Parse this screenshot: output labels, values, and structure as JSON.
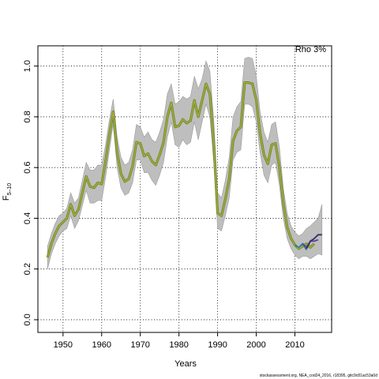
{
  "chart_data": {
    "type": "line",
    "xlabel": "Years",
    "ylabel_main": "F",
    "ylabel_sub": "5–10",
    "legend_label": "Rho 3%",
    "legend_position": "top-right",
    "credit": "stockassessment.org, NEA_cod24_2016, r18395, gitc9c81ac53a0d",
    "xlim": [
      1943.5,
      2019.5
    ],
    "ylim": [
      -0.05,
      1.08
    ],
    "xticks": [
      1950,
      1960,
      1970,
      1980,
      1990,
      2000,
      2010
    ],
    "yticks": [
      0.0,
      0.2,
      0.4,
      0.6,
      0.8,
      1.0
    ],
    "ytick_labels": [
      "0.0",
      "0.2",
      "0.4",
      "0.6",
      "0.8",
      "1.0"
    ],
    "grid": true,
    "grid_style": "dotted",
    "colors": {
      "band": "#bebebe",
      "band_edge": "#9a9a9a",
      "line_outer": "#6b8e23",
      "line_inner": "#b8a94a",
      "peel1": "#1f8a8a",
      "peel2": "#2f7fb5",
      "peel3": "#5a3d9a",
      "peel4": "#3a2a6a"
    },
    "series": [
      {
        "role": "estimate",
        "x": [
          1946,
          1947,
          1948,
          1949,
          1950,
          1951,
          1952,
          1953,
          1954,
          1955,
          1956,
          1957,
          1958,
          1959,
          1960,
          1961,
          1962,
          1963,
          1964,
          1965,
          1966,
          1967,
          1968,
          1969,
          1970,
          1971,
          1972,
          1973,
          1974,
          1975,
          1976,
          1977,
          1978,
          1979,
          1980,
          1981,
          1982,
          1983,
          1984,
          1985,
          1986,
          1987,
          1988,
          1989,
          1990,
          1991,
          1992,
          1993,
          1994,
          1995,
          1996,
          1997,
          1998,
          1999,
          2000,
          2001,
          2002,
          2003,
          2004,
          2005,
          2006,
          2007,
          2008,
          2009,
          2010,
          2011,
          2012,
          2013,
          2014,
          2015
        ],
        "y": [
          0.245,
          0.3,
          0.34,
          0.37,
          0.385,
          0.4,
          0.455,
          0.41,
          0.435,
          0.5,
          0.565,
          0.525,
          0.52,
          0.54,
          0.535,
          0.625,
          0.73,
          0.82,
          0.66,
          0.575,
          0.545,
          0.555,
          0.605,
          0.7,
          0.695,
          0.645,
          0.655,
          0.625,
          0.61,
          0.65,
          0.7,
          0.8,
          0.855,
          0.76,
          0.765,
          0.79,
          0.775,
          0.785,
          0.865,
          0.8,
          0.865,
          0.93,
          0.89,
          0.7,
          0.42,
          0.41,
          0.475,
          0.555,
          0.705,
          0.745,
          0.76,
          0.935,
          0.935,
          0.93,
          0.865,
          0.735,
          0.65,
          0.615,
          0.69,
          0.695,
          0.6,
          0.46,
          0.365,
          0.32,
          0.295,
          0.28,
          0.29,
          0.3,
          0.285,
          0.3
        ]
      },
      {
        "role": "band_upper",
        "x": [
          1946,
          1947,
          1948,
          1949,
          1950,
          1951,
          1952,
          1953,
          1954,
          1955,
          1956,
          1957,
          1958,
          1959,
          1960,
          1961,
          1962,
          1963,
          1964,
          1965,
          1966,
          1967,
          1968,
          1969,
          1970,
          1971,
          1972,
          1973,
          1974,
          1975,
          1976,
          1977,
          1978,
          1979,
          1980,
          1981,
          1982,
          1983,
          1984,
          1985,
          1986,
          1987,
          1988,
          1989,
          1990,
          1991,
          1992,
          1993,
          1994,
          1995,
          1996,
          1997,
          1998,
          1999,
          2000,
          2001,
          2002,
          2003,
          2004,
          2005,
          2006,
          2007,
          2008,
          2009,
          2010,
          2011,
          2012,
          2013,
          2014,
          2015,
          2016,
          2017
        ],
        "y": [
          0.29,
          0.34,
          0.38,
          0.41,
          0.42,
          0.44,
          0.5,
          0.46,
          0.48,
          0.55,
          0.62,
          0.59,
          0.59,
          0.61,
          0.61,
          0.69,
          0.79,
          0.87,
          0.72,
          0.64,
          0.61,
          0.62,
          0.67,
          0.77,
          0.76,
          0.72,
          0.74,
          0.71,
          0.7,
          0.74,
          0.79,
          0.89,
          0.93,
          0.85,
          0.86,
          0.88,
          0.87,
          0.88,
          0.96,
          0.91,
          0.95,
          1.02,
          0.98,
          0.79,
          0.5,
          0.48,
          0.55,
          0.64,
          0.8,
          0.84,
          0.86,
          1.03,
          1.035,
          1.03,
          0.96,
          0.82,
          0.74,
          0.7,
          0.77,
          0.78,
          0.68,
          0.52,
          0.42,
          0.37,
          0.345,
          0.33,
          0.34,
          0.36,
          0.37,
          0.385,
          0.4,
          0.455
        ]
      },
      {
        "role": "band_lower",
        "x": [
          1946,
          1947,
          1948,
          1949,
          1950,
          1951,
          1952,
          1953,
          1954,
          1955,
          1956,
          1957,
          1958,
          1959,
          1960,
          1961,
          1962,
          1963,
          1964,
          1965,
          1966,
          1967,
          1968,
          1969,
          1970,
          1971,
          1972,
          1973,
          1974,
          1975,
          1976,
          1977,
          1978,
          1979,
          1980,
          1981,
          1982,
          1983,
          1984,
          1985,
          1986,
          1987,
          1988,
          1989,
          1990,
          1991,
          1992,
          1993,
          1994,
          1995,
          1996,
          1997,
          1998,
          1999,
          2000,
          2001,
          2002,
          2003,
          2004,
          2005,
          2006,
          2007,
          2008,
          2009,
          2010,
          2011,
          2012,
          2013,
          2014,
          2015,
          2016,
          2017
        ],
        "y": [
          0.2,
          0.26,
          0.3,
          0.33,
          0.35,
          0.36,
          0.41,
          0.36,
          0.39,
          0.45,
          0.51,
          0.46,
          0.46,
          0.47,
          0.47,
          0.56,
          0.67,
          0.77,
          0.6,
          0.52,
          0.49,
          0.5,
          0.54,
          0.63,
          0.63,
          0.58,
          0.58,
          0.55,
          0.53,
          0.57,
          0.62,
          0.72,
          0.78,
          0.69,
          0.68,
          0.71,
          0.69,
          0.7,
          0.78,
          0.71,
          0.78,
          0.85,
          0.8,
          0.62,
          0.36,
          0.35,
          0.41,
          0.48,
          0.63,
          0.66,
          0.67,
          0.85,
          0.85,
          0.84,
          0.78,
          0.66,
          0.57,
          0.54,
          0.61,
          0.62,
          0.53,
          0.4,
          0.32,
          0.28,
          0.255,
          0.24,
          0.25,
          0.25,
          0.24,
          0.25,
          0.26,
          0.255
        ]
      },
      {
        "role": "peel",
        "color_key": "peel1",
        "x": [
          2010,
          2011,
          2012,
          2013
        ],
        "y": [
          0.295,
          0.285,
          0.3,
          0.275
        ]
      },
      {
        "role": "peel",
        "color_key": "peel2",
        "x": [
          2011,
          2012,
          2013,
          2014
        ],
        "y": [
          0.285,
          0.3,
          0.28,
          0.31
        ]
      },
      {
        "role": "peel",
        "color_key": "peel3",
        "x": [
          2012,
          2013,
          2014,
          2015,
          2016
        ],
        "y": [
          0.3,
          0.285,
          0.31,
          0.31,
          0.315
        ]
      },
      {
        "role": "peel",
        "color_key": "peel4",
        "x": [
          2013,
          2014,
          2015,
          2016,
          2017
        ],
        "y": [
          0.28,
          0.31,
          0.32,
          0.335,
          0.335
        ]
      }
    ]
  }
}
